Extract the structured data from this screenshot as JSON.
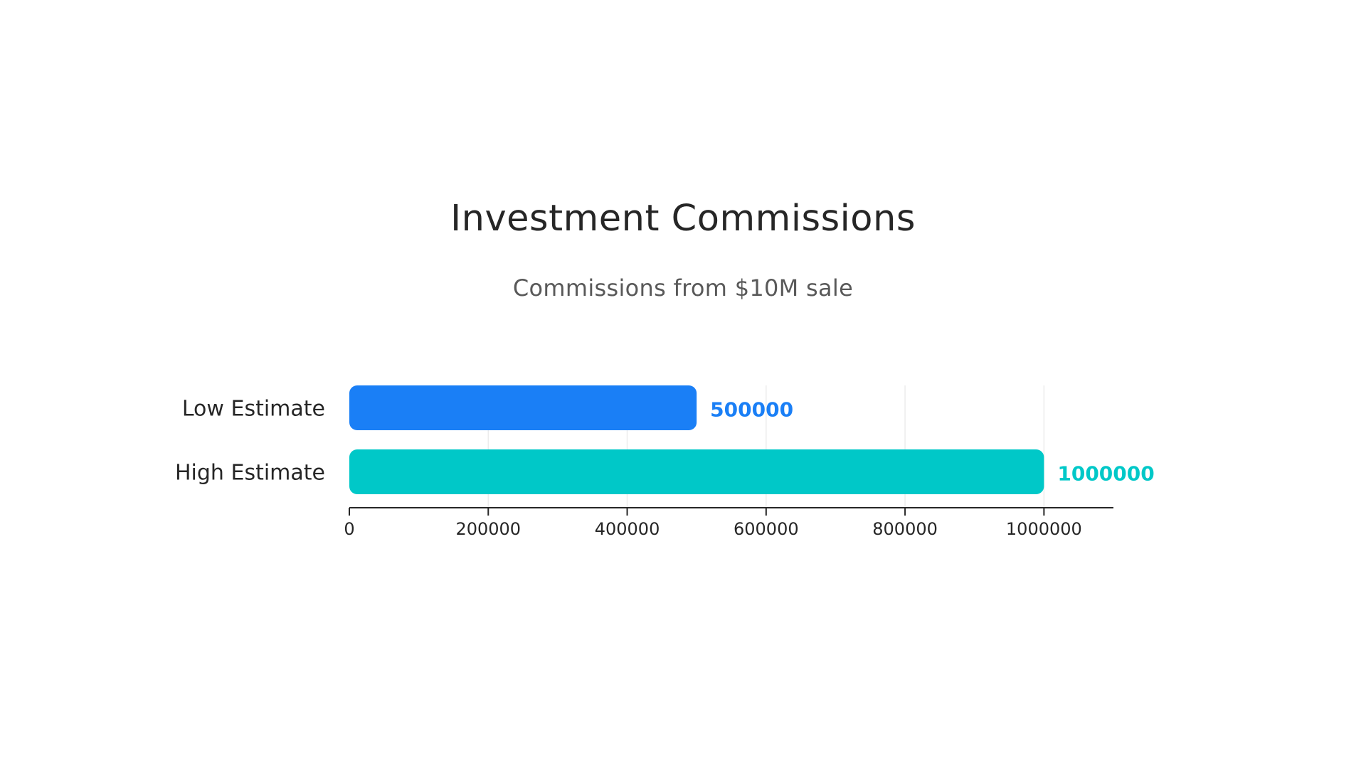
{
  "chart_data": {
    "type": "bar",
    "orientation": "horizontal",
    "title": "Investment Commissions",
    "subtitle": "Commissions from $10M sale",
    "categories": [
      "Low Estimate",
      "High Estimate"
    ],
    "values": [
      500000,
      1000000
    ],
    "bar_colors": [
      "#1a7ff6",
      "#00c8c8"
    ],
    "data_labels": [
      "500000",
      "1000000"
    ],
    "xlim": [
      0,
      1100000
    ],
    "x_ticks": [
      0,
      200000,
      400000,
      600000,
      800000,
      1000000
    ],
    "x_tick_labels": [
      "0",
      "200000",
      "400000",
      "600000",
      "800000",
      "1000000"
    ],
    "grid": "vertical",
    "legend": "none"
  }
}
